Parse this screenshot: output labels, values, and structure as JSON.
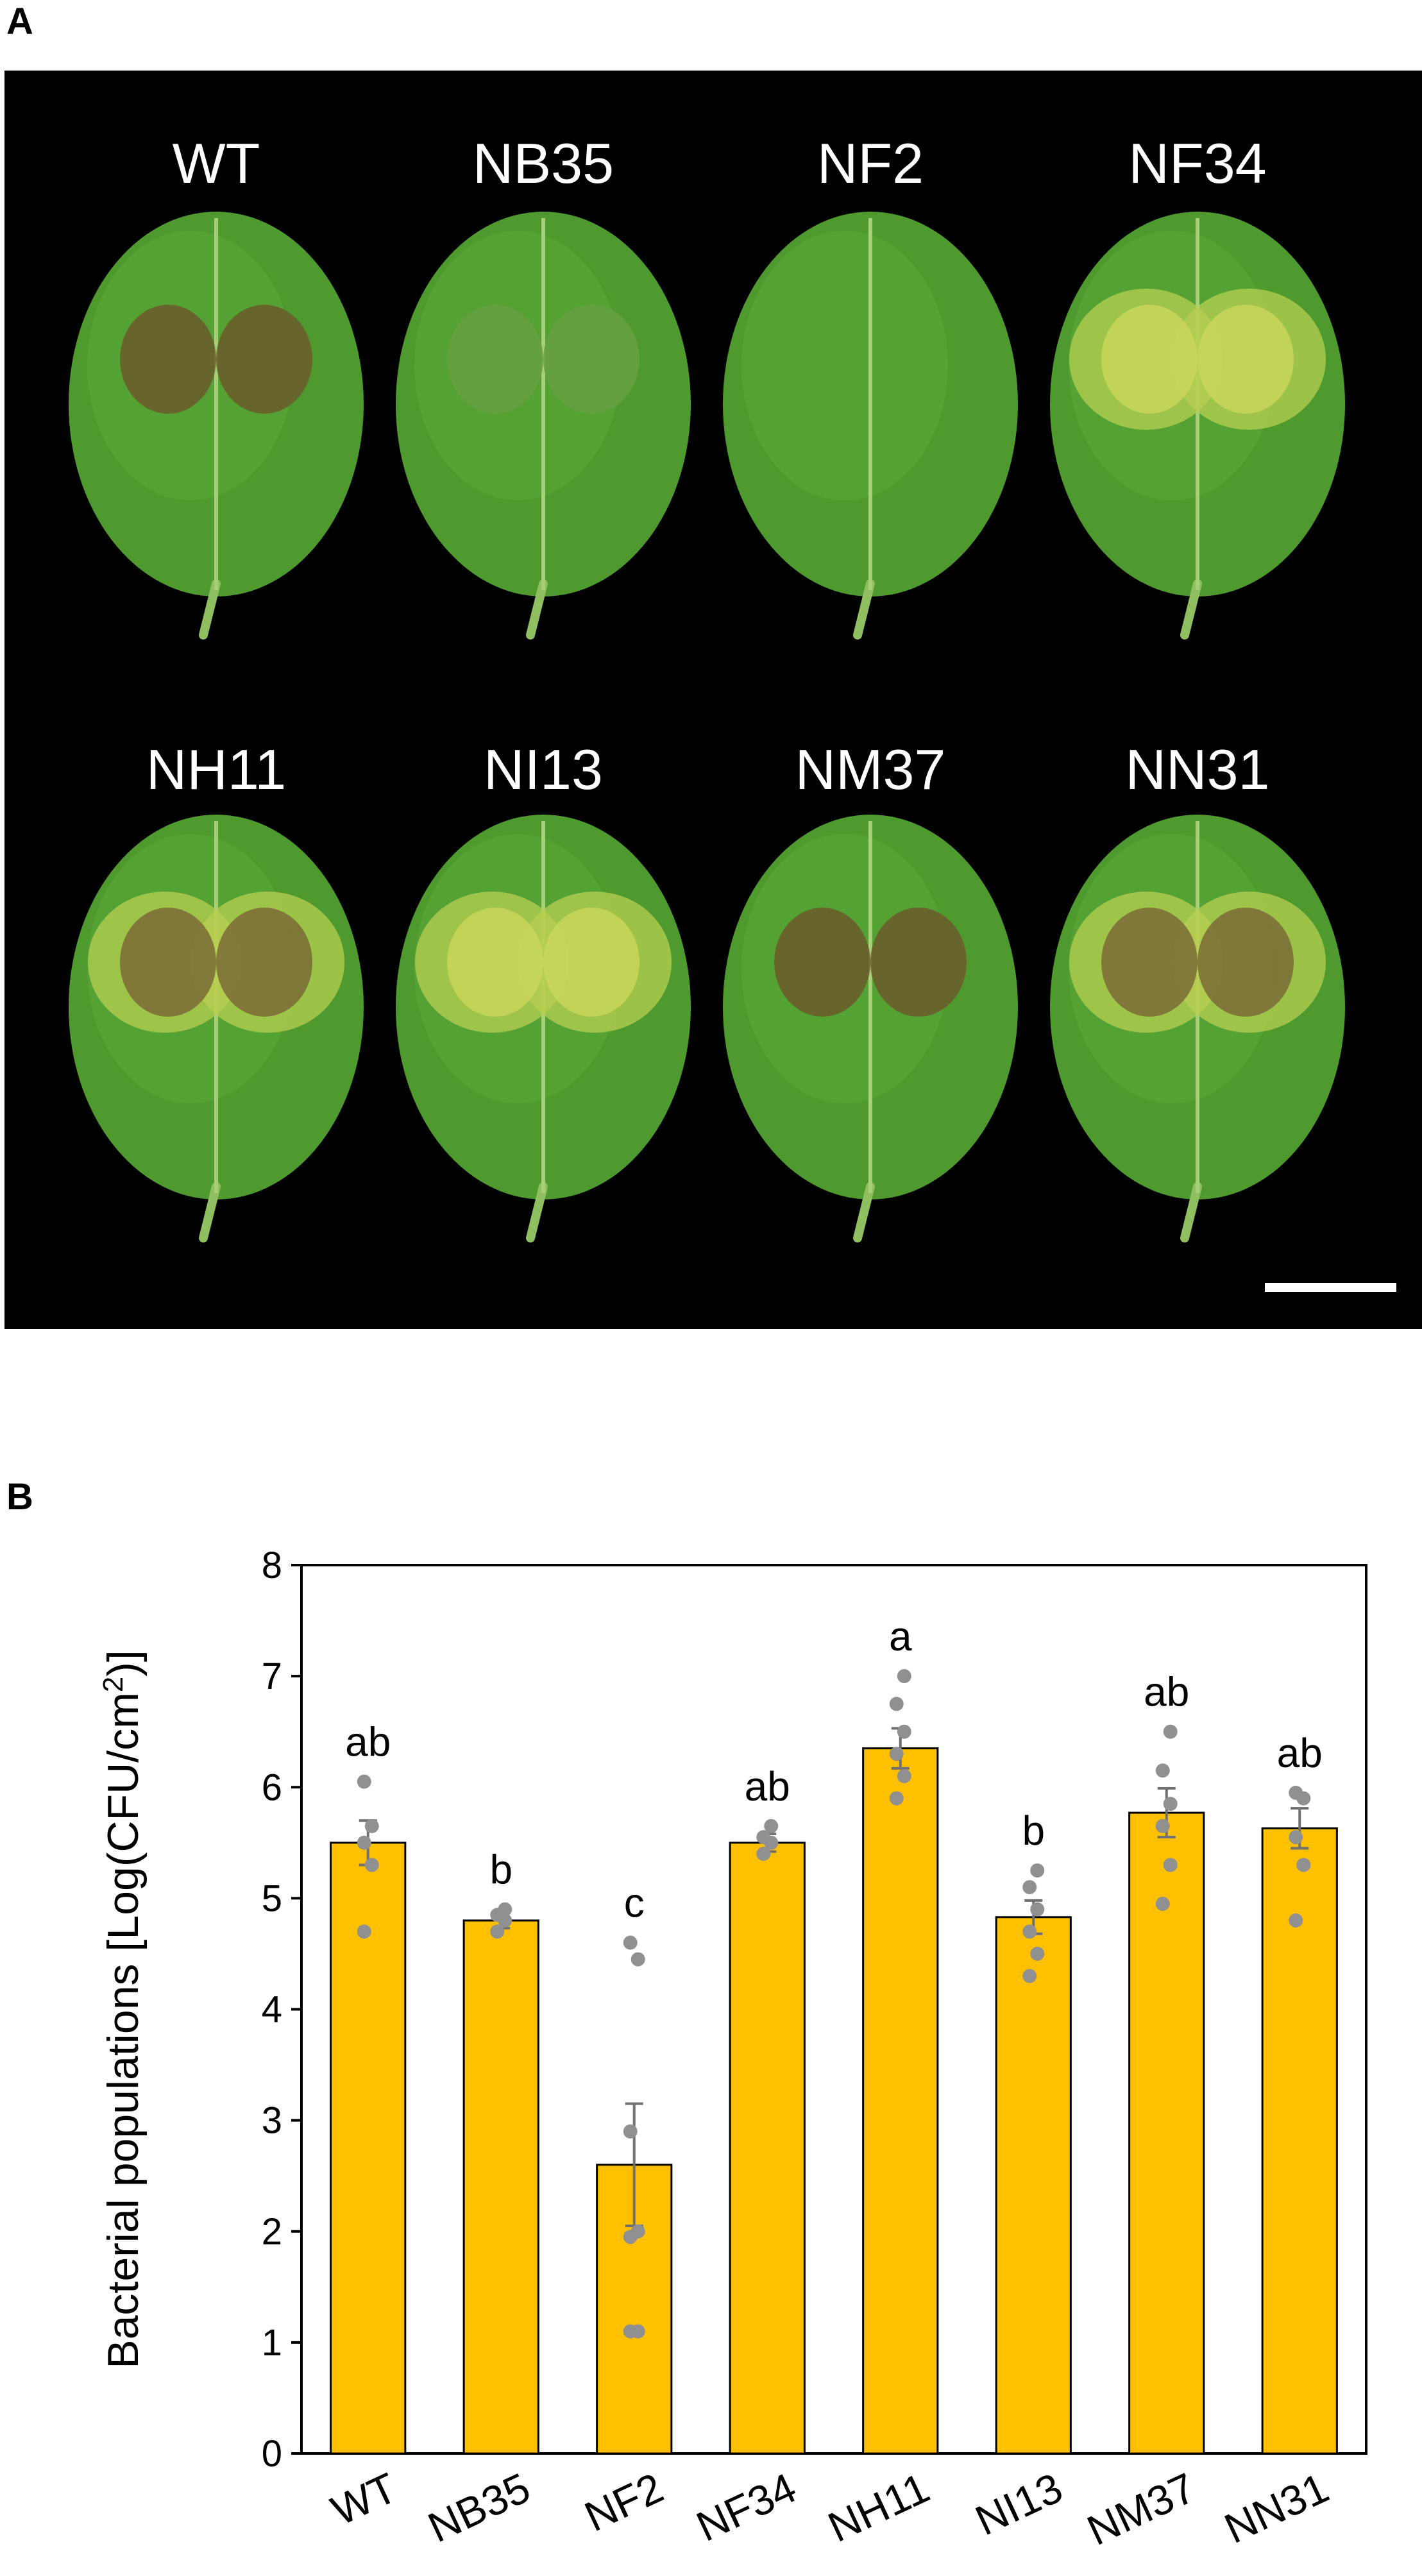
{
  "panel_a": {
    "letter": "A",
    "leaves": [
      {
        "label": "WT",
        "lesion": "brown"
      },
      {
        "label": "NB35",
        "lesion": "faint"
      },
      {
        "label": "NF2",
        "lesion": "none"
      },
      {
        "label": "NF34",
        "lesion": "chlorotic"
      },
      {
        "label": "NH11",
        "lesion": "brown-halo"
      },
      {
        "label": "NI13",
        "lesion": "chlorotic"
      },
      {
        "label": "NM37",
        "lesion": "brown"
      },
      {
        "label": "NN31",
        "lesion": "brown-halo"
      }
    ],
    "background_color": "#000000",
    "leaf_color": "#4f9a2e",
    "scale_bar_color": "#ffffff"
  },
  "panel_b": {
    "letter": "B"
  },
  "chart_data": {
    "type": "bar",
    "categories": [
      "WT",
      "NB35",
      "NF2",
      "NF34",
      "NH11",
      "NI13",
      "NM37",
      "NN31"
    ],
    "values": [
      5.5,
      4.8,
      2.6,
      5.5,
      6.35,
      4.83,
      5.77,
      5.63
    ],
    "errors": [
      0.2,
      0.07,
      0.55,
      0.08,
      0.18,
      0.15,
      0.22,
      0.18
    ],
    "significance": [
      "ab",
      "b",
      "c",
      "ab",
      "a",
      "b",
      "ab",
      "ab"
    ],
    "points": [
      [
        4.7,
        5.3,
        5.5,
        5.65,
        6.05
      ],
      [
        4.7,
        4.8,
        4.85,
        4.9
      ],
      [
        1.1,
        1.1,
        1.95,
        2.0,
        2.9,
        4.45,
        4.6
      ],
      [
        5.4,
        5.5,
        5.55,
        5.65
      ],
      [
        5.9,
        6.1,
        6.3,
        6.5,
        6.75,
        7.0
      ],
      [
        4.3,
        4.5,
        4.7,
        4.9,
        5.1,
        5.25
      ],
      [
        4.95,
        5.3,
        5.65,
        5.85,
        6.15,
        6.5
      ],
      [
        4.8,
        5.3,
        5.55,
        5.9,
        5.95
      ]
    ],
    "ylabel_main": "Bacterial populations [Log(CFU/cm",
    "ylabel_sup": "2",
    "ylabel_end": ")]",
    "ylim": [
      0,
      8
    ],
    "yticks": [
      "0",
      "1",
      "2",
      "3",
      "4",
      "5",
      "6",
      "7",
      "8"
    ],
    "grid": false,
    "bar_color": "#ffc000",
    "point_color": "#909090",
    "error_color": "#707070"
  }
}
